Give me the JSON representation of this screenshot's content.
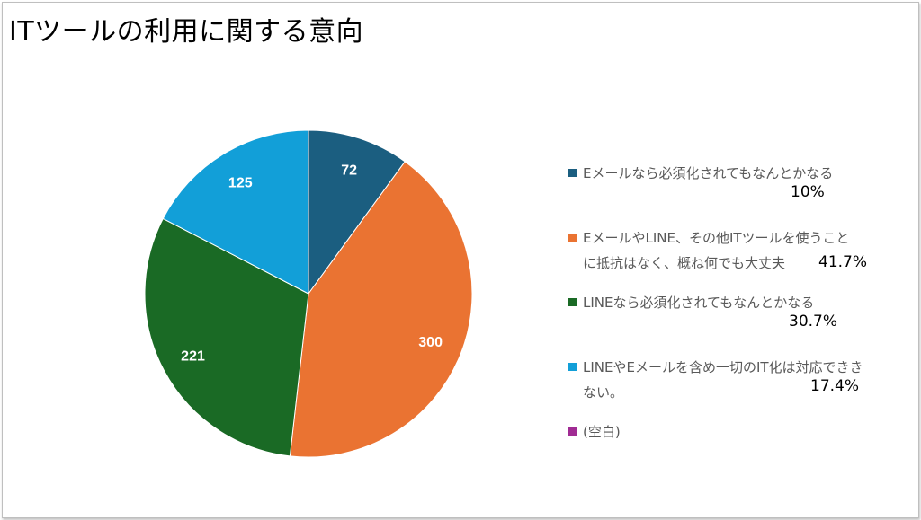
{
  "title": "ITツールの利用に関する意向",
  "chart_data": {
    "type": "pie",
    "title": "ITツールの利用に関する意向",
    "start_angle_deg": 0,
    "direction": "clockwise",
    "slices": [
      {
        "name": "Eメールなら必須化されてもなんとかなる",
        "value": 72,
        "label": "72",
        "percent_label": "10%",
        "color": "#1b5e80"
      },
      {
        "name": "EメールやLINE、その他ITツールを使うことに抵抗はなく、概ね何でも大丈夫",
        "value": 300,
        "label": "300",
        "percent_label": "41.7%",
        "color": "#ea7332"
      },
      {
        "name": "LINEなら必須化されてもなんとかなる",
        "value": 221,
        "label": "221",
        "percent_label": "30.7%",
        "color": "#1a6a25"
      },
      {
        "name": "LINEやEメールを含め一切のIT化は対応できない。",
        "value": 125,
        "label": "125",
        "percent_label": "17.4%",
        "color": "#129fd8"
      },
      {
        "name": "(空白)",
        "value": 0,
        "label": "",
        "percent_label": "",
        "color": "#a02b93"
      }
    ],
    "legend_position": "right"
  },
  "legend": [
    {
      "lines": [
        "Eメールなら必須化されてもなんとかなる"
      ],
      "pct": "10%",
      "color": "#1b5e80"
    },
    {
      "lines": [
        "EメールやLINE、その他ITツールを使うこと",
        "に抵抗はなく、概ね何でも大丈夫"
      ],
      "pct": "41.7%",
      "color": "#ea7332"
    },
    {
      "lines": [
        "LINEなら必須化されてもなんとかなる"
      ],
      "pct": "30.7%",
      "color": "#1a6a25"
    },
    {
      "lines": [
        "LINEやEメールを含め一切のIT化は対応できき",
        "ない。"
      ],
      "pct": "17.4%",
      "color": "#129fd8"
    },
    {
      "lines": [
        "(空白)"
      ],
      "pct": "",
      "color": "#a02b93"
    }
  ]
}
